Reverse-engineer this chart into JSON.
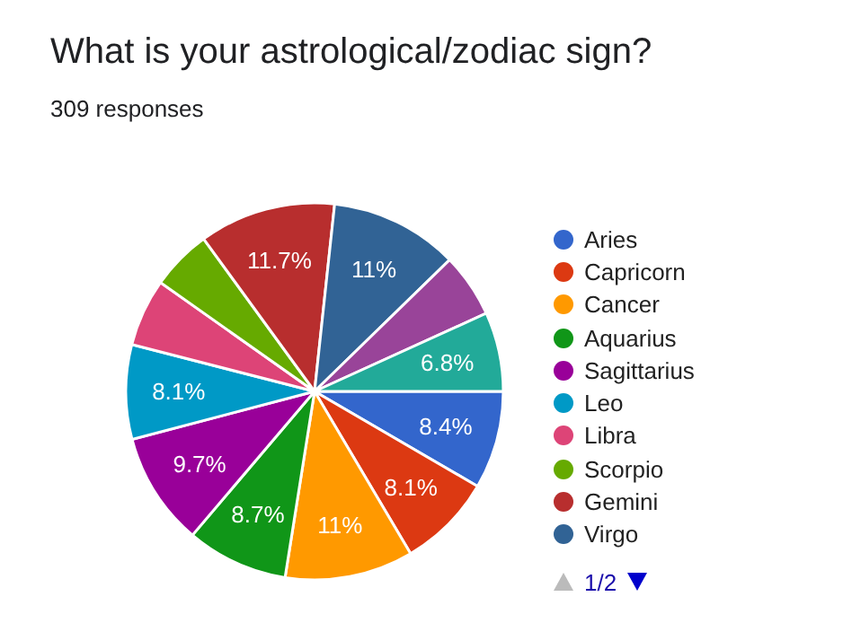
{
  "chart_data": {
    "type": "pie",
    "title": "What is your astrological/zodiac sign?",
    "subtitle": "309 responses",
    "categories": [
      "Aries",
      "Capricorn",
      "Cancer",
      "Aquarius",
      "Sagittarius",
      "Leo",
      "Libra",
      "Scorpio",
      "Gemini",
      "Virgo",
      null,
      null
    ],
    "values": [
      8.4,
      8.1,
      11,
      8.7,
      9.7,
      8.1,
      5.8,
      5.2,
      11.7,
      11,
      5.5,
      6.8
    ],
    "colors": [
      "#3366cc",
      "#dc3912",
      "#ff9900",
      "#109618",
      "#990099",
      "#0099c6",
      "#dd4477",
      "#66aa00",
      "#b82e2e",
      "#316395",
      "#994499",
      "#22aa99"
    ],
    "value_labels": [
      "8.4%",
      "8.1%",
      "11%",
      "8.7%",
      "9.7%",
      "8.1%",
      null,
      null,
      "11.7%",
      "11%",
      null,
      "6.8%"
    ],
    "legend": "right",
    "annotations": [
      "1/2"
    ]
  }
}
